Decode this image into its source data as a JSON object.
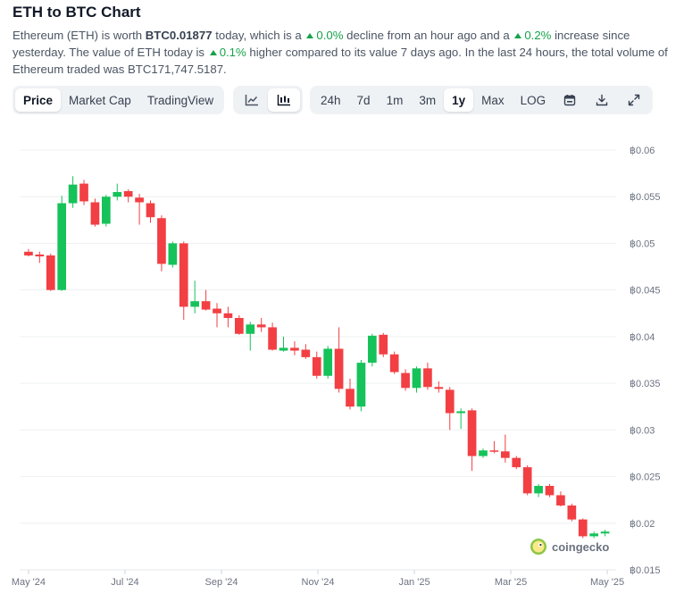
{
  "header": {
    "title": "ETH to BTC Chart",
    "desc": {
      "p1": "Ethereum (ETH) is worth ",
      "price": "BTC0.01877",
      "p2": " today, which is a ",
      "hour_change": "0.0%",
      "p3": " decline from an hour ago and a ",
      "day_change": "0.2%",
      "p4": " increase since yesterday. The value of ETH today is ",
      "week_change": "0.1%",
      "p5": " higher compared to its value 7 days ago. In the last 24 hours, the total volume of Ethereum traded was BTC171,747.5187."
    }
  },
  "toolbar": {
    "views": [
      "Price",
      "Market Cap",
      "TradingView"
    ],
    "active_view": "Price",
    "chart_modes": [
      {
        "icon": "line-chart-icon",
        "active": false
      },
      {
        "icon": "candlestick-chart-icon",
        "active": true
      }
    ],
    "ranges": [
      "24h",
      "7d",
      "1m",
      "3m",
      "1y",
      "Max",
      "LOG"
    ],
    "active_range": "1y",
    "tools": [
      {
        "icon": "calendar-icon"
      },
      {
        "icon": "download-icon"
      },
      {
        "icon": "expand-icon"
      }
    ]
  },
  "colors": {
    "up": "#16c25a",
    "down": "#f23f43",
    "accent_green": "#16a34a",
    "grid": "#eef0f3"
  },
  "watermark": {
    "text": "coingecko",
    "icon": "gecko-logo-icon"
  },
  "chart_data": {
    "type": "candlestick",
    "y_currency_prefix": "฿",
    "ylim": [
      0.015,
      0.06
    ],
    "yticks": [
      "฿0.06",
      "฿0.055",
      "฿0.05",
      "฿0.045",
      "฿0.04",
      "฿0.035",
      "฿0.03",
      "฿0.025",
      "฿0.02",
      "฿0.015"
    ],
    "ytick_values": [
      0.06,
      0.055,
      0.05,
      0.045,
      0.04,
      0.035,
      0.03,
      0.025,
      0.02,
      0.015
    ],
    "xticks": [
      "May '24",
      "Jul '24",
      "Sep '24",
      "Nov '24",
      "Jan '25",
      "Mar '25",
      "May '25"
    ],
    "xtick_positions": [
      0,
      8.7,
      17.4,
      26.1,
      34.8,
      43.5,
      52.2
    ],
    "x_range": [
      -0.8,
      53
    ],
    "candles": [
      {
        "o": 0.0491,
        "h": 0.0494,
        "l": 0.0486,
        "c": 0.0487
      },
      {
        "o": 0.0488,
        "h": 0.0491,
        "l": 0.0479,
        "c": 0.0486
      },
      {
        "o": 0.0487,
        "h": 0.0489,
        "l": 0.0449,
        "c": 0.045
      },
      {
        "o": 0.045,
        "h": 0.0551,
        "l": 0.0449,
        "c": 0.0543
      },
      {
        "o": 0.0543,
        "h": 0.0572,
        "l": 0.0538,
        "c": 0.0563
      },
      {
        "o": 0.0564,
        "h": 0.0568,
        "l": 0.0541,
        "c": 0.0545
      },
      {
        "o": 0.0544,
        "h": 0.0548,
        "l": 0.0518,
        "c": 0.052
      },
      {
        "o": 0.0521,
        "h": 0.0552,
        "l": 0.0518,
        "c": 0.055
      },
      {
        "o": 0.055,
        "h": 0.0564,
        "l": 0.0546,
        "c": 0.0555
      },
      {
        "o": 0.0556,
        "h": 0.0558,
        "l": 0.0544,
        "c": 0.055
      },
      {
        "o": 0.0549,
        "h": 0.0553,
        "l": 0.052,
        "c": 0.0544
      },
      {
        "o": 0.0543,
        "h": 0.0546,
        "l": 0.0522,
        "c": 0.0528
      },
      {
        "o": 0.0527,
        "h": 0.053,
        "l": 0.047,
        "c": 0.0478
      },
      {
        "o": 0.0477,
        "h": 0.0502,
        "l": 0.0474,
        "c": 0.05
      },
      {
        "o": 0.05,
        "h": 0.0502,
        "l": 0.0418,
        "c": 0.0432
      },
      {
        "o": 0.0432,
        "h": 0.046,
        "l": 0.0425,
        "c": 0.0438
      },
      {
        "o": 0.0438,
        "h": 0.045,
        "l": 0.0428,
        "c": 0.0429
      },
      {
        "o": 0.043,
        "h": 0.0436,
        "l": 0.041,
        "c": 0.0425
      },
      {
        "o": 0.0425,
        "h": 0.0432,
        "l": 0.041,
        "c": 0.042
      },
      {
        "o": 0.042,
        "h": 0.0423,
        "l": 0.0402,
        "c": 0.0403
      },
      {
        "o": 0.0403,
        "h": 0.0416,
        "l": 0.0385,
        "c": 0.0413
      },
      {
        "o": 0.0413,
        "h": 0.042,
        "l": 0.0405,
        "c": 0.041
      },
      {
        "o": 0.041,
        "h": 0.0415,
        "l": 0.0385,
        "c": 0.0386
      },
      {
        "o": 0.0385,
        "h": 0.04,
        "l": 0.0384,
        "c": 0.0388
      },
      {
        "o": 0.0388,
        "h": 0.0395,
        "l": 0.038,
        "c": 0.0385
      },
      {
        "o": 0.0386,
        "h": 0.0392,
        "l": 0.0376,
        "c": 0.0378
      },
      {
        "o": 0.0378,
        "h": 0.0384,
        "l": 0.0355,
        "c": 0.0358
      },
      {
        "o": 0.0358,
        "h": 0.039,
        "l": 0.0355,
        "c": 0.0387
      },
      {
        "o": 0.0387,
        "h": 0.041,
        "l": 0.034,
        "c": 0.0344
      },
      {
        "o": 0.0344,
        "h": 0.0355,
        "l": 0.0322,
        "c": 0.0325
      },
      {
        "o": 0.0325,
        "h": 0.0375,
        "l": 0.032,
        "c": 0.0372
      },
      {
        "o": 0.0372,
        "h": 0.0403,
        "l": 0.0368,
        "c": 0.0401
      },
      {
        "o": 0.0402,
        "h": 0.0404,
        "l": 0.0378,
        "c": 0.0381
      },
      {
        "o": 0.0381,
        "h": 0.0384,
        "l": 0.036,
        "c": 0.0362
      },
      {
        "o": 0.0361,
        "h": 0.0365,
        "l": 0.0342,
        "c": 0.0345
      },
      {
        "o": 0.0345,
        "h": 0.0368,
        "l": 0.034,
        "c": 0.0366
      },
      {
        "o": 0.0366,
        "h": 0.0372,
        "l": 0.0343,
        "c": 0.0346
      },
      {
        "o": 0.0346,
        "h": 0.0352,
        "l": 0.034,
        "c": 0.0344
      },
      {
        "o": 0.0343,
        "h": 0.0346,
        "l": 0.03,
        "c": 0.0318
      },
      {
        "o": 0.0318,
        "h": 0.0323,
        "l": 0.0301,
        "c": 0.032
      },
      {
        "o": 0.0321,
        "h": 0.0323,
        "l": 0.0256,
        "c": 0.0272
      },
      {
        "o": 0.0272,
        "h": 0.028,
        "l": 0.027,
        "c": 0.0278
      },
      {
        "o": 0.0278,
        "h": 0.0288,
        "l": 0.0275,
        "c": 0.0277
      },
      {
        "o": 0.0277,
        "h": 0.0295,
        "l": 0.0265,
        "c": 0.027
      },
      {
        "o": 0.027,
        "h": 0.0272,
        "l": 0.0258,
        "c": 0.026
      },
      {
        "o": 0.026,
        "h": 0.0262,
        "l": 0.023,
        "c": 0.0232
      },
      {
        "o": 0.0232,
        "h": 0.0242,
        "l": 0.0228,
        "c": 0.024
      },
      {
        "o": 0.024,
        "h": 0.0242,
        "l": 0.0228,
        "c": 0.023
      },
      {
        "o": 0.023,
        "h": 0.0234,
        "l": 0.0218,
        "c": 0.0219
      },
      {
        "o": 0.0219,
        "h": 0.0221,
        "l": 0.0202,
        "c": 0.0204
      },
      {
        "o": 0.0204,
        "h": 0.0205,
        "l": 0.0184,
        "c": 0.0186
      },
      {
        "o": 0.0186,
        "h": 0.0191,
        "l": 0.0184,
        "c": 0.0189
      },
      {
        "o": 0.0189,
        "h": 0.0193,
        "l": 0.0186,
        "c": 0.0191
      }
    ]
  }
}
